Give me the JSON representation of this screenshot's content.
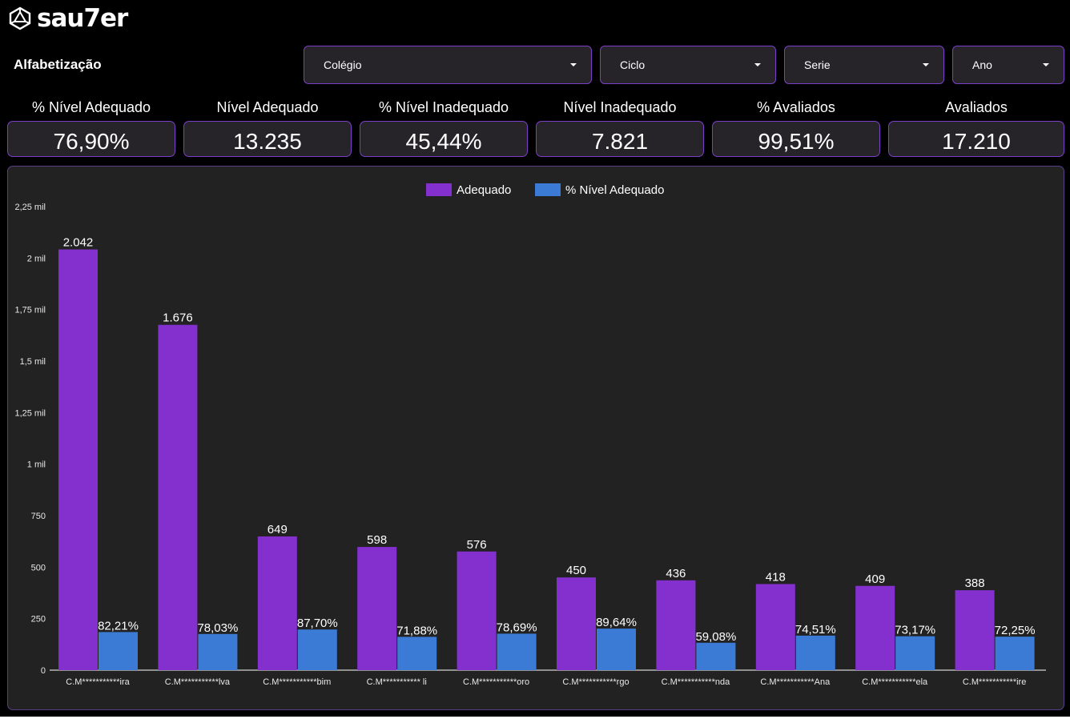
{
  "brand": {
    "name": "sau7er",
    "logo_icon": "dice-icon"
  },
  "page": {
    "title": "Alfabetização"
  },
  "filters": [
    {
      "label": "Colégio",
      "icon": "chevron-down-icon"
    },
    {
      "label": "Ciclo",
      "icon": "chevron-down-icon"
    },
    {
      "label": "Serie",
      "icon": "chevron-down-icon"
    },
    {
      "label": "Ano",
      "icon": "chevron-down-icon"
    }
  ],
  "kpis": [
    {
      "label": "% Nível Adequado",
      "value": "76,90%"
    },
    {
      "label": "Nível Adequado",
      "value": "13.235"
    },
    {
      "label": "% Nível Inadequado",
      "value": "45,44%"
    },
    {
      "label": "Nível Inadequado",
      "value": "7.821"
    },
    {
      "label": "% Avaliados",
      "value": "99,51%"
    },
    {
      "label": "Avaliados",
      "value": "17.210"
    }
  ],
  "colors": {
    "accent_border": "#7b3fc7",
    "panel_bg": "#262428",
    "adequado": "#8330cf",
    "pct_nivel": "#3b7bd6"
  },
  "chart_data": {
    "type": "bar",
    "categories": [
      "C.M***********ira",
      "C.M***********lva",
      "C.M***********bim",
      "C.M*********** li",
      "C.M***********oro",
      "C.M***********rgo",
      "C.M***********nda",
      "C.M***********Ana",
      "C.M***********ela",
      "C.M***********ire"
    ],
    "series": [
      {
        "name": "Adequado",
        "values": [
          2042,
          1676,
          649,
          598,
          576,
          450,
          436,
          418,
          409,
          388
        ],
        "labels": [
          "2.042",
          "1.676",
          "649",
          "598",
          "576",
          "450",
          "436",
          "418",
          "409",
          "388"
        ],
        "color": "#8330cf"
      },
      {
        "name": "% Nível Adequado",
        "values": [
          82.21,
          78.03,
          87.7,
          71.88,
          78.69,
          89.64,
          59.08,
          74.51,
          73.17,
          72.25
        ],
        "labels": [
          "82,21%",
          "78,03%",
          "87,70%",
          "71,88%",
          "78,69%",
          "89,64%",
          "59,08%",
          "74,51%",
          "73,17%",
          "72,25%"
        ],
        "color": "#3b7bd6"
      }
    ],
    "ylim": [
      0,
      2250
    ],
    "yticks": [
      0,
      250,
      500,
      750,
      1000,
      1250,
      1500,
      1750,
      2000,
      2250
    ],
    "ytick_labels": [
      "0",
      "250",
      "500",
      "750",
      "1 mil",
      "1,25 mil",
      "1,5 mil",
      "1,75 mil",
      "2 mil",
      "2,25 mil"
    ],
    "grid": false,
    "legend": "top-center"
  }
}
